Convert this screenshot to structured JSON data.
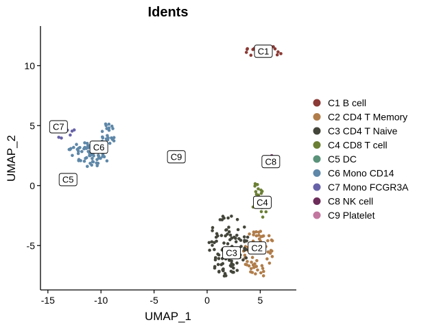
{
  "chart_data": {
    "type": "scatter",
    "title": "Idents",
    "xlabel": "UMAP_1",
    "ylabel": "UMAP_2",
    "xlim": [
      -15.7,
      8.4
    ],
    "ylim": [
      -8.7,
      13.3
    ],
    "x_ticks": [
      -15,
      -10,
      -5,
      0,
      5
    ],
    "y_ticks": [
      -5,
      0,
      5,
      10
    ],
    "x_tick_labels": [
      "-15",
      "-10",
      "-5",
      "0",
      "5"
    ],
    "y_tick_labels": [
      "-5",
      "0",
      "5",
      "10"
    ],
    "grid": false,
    "legend_position": "right",
    "series": [
      {
        "name": "C1 B cell",
        "label": "C1",
        "color": "#8b3a35",
        "label_pos": [
          5.3,
          11.2
        ],
        "clusters": [
          {
            "cx": 5.4,
            "cy": 11.2,
            "rx": 1.9,
            "ry": 0.45,
            "n": 34
          }
        ]
      },
      {
        "name": "C2 CD4 T Memory",
        "label": "C2",
        "color": "#b07d4a",
        "label_pos": [
          4.7,
          -5.2
        ],
        "clusters": [
          {
            "cx": 4.9,
            "cy": -5.6,
            "rx": 1.5,
            "ry": 2.0,
            "n": 60
          }
        ]
      },
      {
        "name": "C3 CD4 T Naive",
        "label": "C3",
        "color": "#44453a",
        "label_pos": [
          2.3,
          -5.6
        ],
        "clusters": [
          {
            "cx": 2.0,
            "cy": -5.0,
            "rx": 1.9,
            "ry": 2.6,
            "n": 95
          }
        ]
      },
      {
        "name": "C4 CD8 T cell",
        "label": "C4",
        "color": "#6b7f35",
        "label_pos": [
          5.2,
          -1.4
        ],
        "clusters": [
          {
            "cx": 5.0,
            "cy": -1.6,
            "rx": 0.7,
            "ry": 1.4,
            "n": 18
          },
          {
            "cx": 4.8,
            "cy": 0.1,
            "rx": 0.35,
            "ry": 0.4,
            "n": 4
          }
        ]
      },
      {
        "name": "C5 DC",
        "label": "C5",
        "color": "#5a9279",
        "label_pos": [
          -13.1,
          0.5
        ],
        "clusters": []
      },
      {
        "name": "C6 Mono CD14",
        "label": "C6",
        "color": "#5e87a8",
        "label_pos": [
          -10.2,
          3.2
        ],
        "clusters": [
          {
            "cx": -10.8,
            "cy": 2.6,
            "rx": 1.6,
            "ry": 1.1,
            "n": 55
          },
          {
            "cx": -9.4,
            "cy": 4.3,
            "rx": 0.8,
            "ry": 0.9,
            "n": 22
          },
          {
            "cx": -12.5,
            "cy": 3.0,
            "rx": 0.5,
            "ry": 0.6,
            "n": 8
          }
        ]
      },
      {
        "name": "C7 Mono FCGR3A",
        "label": "C7",
        "color": "#6762a8",
        "label_pos": [
          -14.0,
          4.9
        ],
        "clusters": [
          {
            "cx": -13.5,
            "cy": 4.7,
            "rx": 1.0,
            "ry": 0.9,
            "n": 8
          }
        ]
      },
      {
        "name": "C8 NK cell",
        "label": "C8",
        "color": "#6d2d5a",
        "label_pos": [
          6.0,
          2.0
        ],
        "clusters": [
          {
            "cx": 6.0,
            "cy": 2.2,
            "rx": 0.5,
            "ry": 0.5,
            "n": 4
          }
        ]
      },
      {
        "name": "C9 Platelet",
        "label": "C9",
        "color": "#c277a0",
        "label_pos": [
          -2.9,
          2.4
        ],
        "clusters": []
      }
    ]
  }
}
